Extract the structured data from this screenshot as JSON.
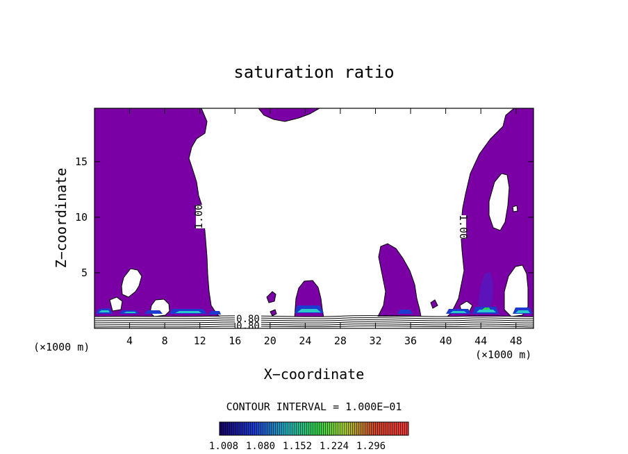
{
  "chart_data": {
    "type": "heatmap",
    "title": "saturation ratio",
    "xlabel": "X−coordinate",
    "ylabel": "Z−coordinate",
    "x_unit_left": "(×1000 m)",
    "x_unit_right": "(×1000 m)",
    "xlim": [
      0,
      50
    ],
    "ylim": [
      0,
      19.8
    ],
    "x_ticks": [
      4,
      8,
      12,
      16,
      20,
      24,
      28,
      32,
      36,
      40,
      44,
      48
    ],
    "y_ticks": [
      5,
      10,
      15
    ],
    "contour_labels": [
      {
        "text": "1.00",
        "x": 12,
        "z": 10
      },
      {
        "text": "1.00",
        "x": 42,
        "z": 9.5
      },
      {
        "text": "0.80",
        "x": 17.5,
        "z": 0.6
      },
      {
        "text": "0.80",
        "x": 17.5,
        "z": 0.2
      }
    ],
    "contour_interval": "CONTOUR INTERVAL = 1.000E−01",
    "colorbar_ticks": [
      "1.008",
      "1.080",
      "1.152",
      "1.224",
      "1.296"
    ],
    "colors": {
      "field": "#7a00a6",
      "clear": "#ffffff",
      "contour": "#000000",
      "colorbar_stops": [
        "#1a0070",
        "#1f3fcf",
        "#1fb4b4",
        "#2fd24a",
        "#a6cf2a",
        "#d14b2a",
        "#e83838"
      ]
    }
  }
}
